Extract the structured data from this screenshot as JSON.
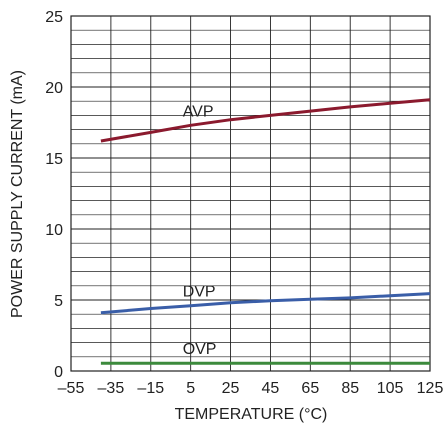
{
  "chart_data": {
    "type": "line",
    "title": "",
    "xlabel": "TEMPERATURE (°C)",
    "ylabel": "POWER SUPPLY CURRENT (mA)",
    "xlim": [
      -55,
      125
    ],
    "ylim": [
      0,
      25
    ],
    "x_ticks": [
      "–55",
      "–35",
      "–15",
      "5",
      "25",
      "45",
      "65",
      "85",
      "105",
      "125"
    ],
    "y_ticks": [
      "0",
      "5",
      "10",
      "15",
      "20",
      "25"
    ],
    "grid": true,
    "legend": "none",
    "series": [
      {
        "name": "AVP",
        "color": "#8b1a2e",
        "x": [
          -40,
          -15,
          5,
          25,
          45,
          65,
          85,
          105,
          125
        ],
        "y": [
          16.2,
          16.8,
          17.3,
          17.7,
          18.0,
          18.3,
          18.6,
          18.85,
          19.1
        ]
      },
      {
        "name": "DVP",
        "color": "#3a5ea8",
        "x": [
          -40,
          -15,
          5,
          25,
          45,
          65,
          85,
          105,
          125
        ],
        "y": [
          4.1,
          4.4,
          4.6,
          4.8,
          4.95,
          5.05,
          5.15,
          5.3,
          5.45
        ]
      },
      {
        "name": "OVP",
        "color": "#3c8a3c",
        "x": [
          -40,
          -15,
          5,
          25,
          45,
          65,
          85,
          105,
          125
        ],
        "y": [
          0.55,
          0.55,
          0.55,
          0.55,
          0.55,
          0.55,
          0.55,
          0.55,
          0.55
        ]
      }
    ]
  }
}
